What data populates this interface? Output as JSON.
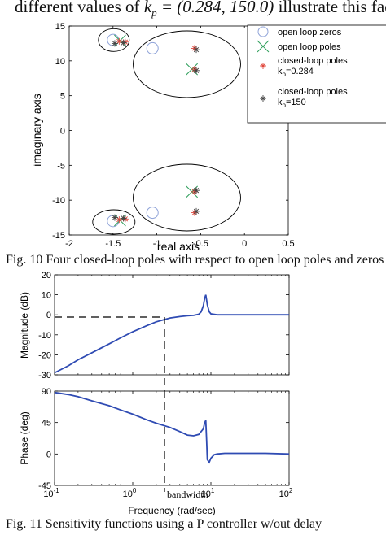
{
  "intro": {
    "prefix": "different values of ",
    "kp": "k",
    "kp_sub": "p",
    "value": " = (0.284, 150.0)",
    "suffix": " illustrate this fact."
  },
  "fig10": {
    "caption": "Fig. 10 Four closed-loop poles with respect to open loop poles and zeros",
    "xlabel": "real axis",
    "ylabel": "imaginary axis",
    "xticks": [
      -2,
      -1.5,
      -1,
      -0.5,
      0,
      0.5
    ],
    "xtick_labels": [
      "-2",
      "-1.5",
      "-1",
      "-0.5",
      "0",
      "0.5"
    ],
    "yticks": [
      -15,
      -10,
      -5,
      0,
      5,
      10,
      15
    ],
    "ytick_labels": [
      "-15",
      "-10",
      "-5",
      "0",
      "5",
      "10",
      "15"
    ],
    "legend": {
      "zeros": "open loop zeros",
      "poles": "open loop poles",
      "cl1_line1": "closed-loop poles",
      "cl1_line2": "k",
      "cl1_sub": "p",
      "cl1_line2b": "=0.284",
      "cl2_line1": "closed-loop poles",
      "cl2_line2": "k",
      "cl2_sub": "p",
      "cl2_line2b": "=150"
    }
  },
  "fig11": {
    "caption": "Fig. 11 Sensitivity functions using a P controller w/out delay",
    "xlabel": "Frequency  (rad/sec)",
    "mag_ylabel": "Magnitude (dB)",
    "phase_ylabel": "Phase (deg)",
    "bandwidth_label": "bandwidth",
    "mag_yticks": [
      20,
      10,
      0,
      -10,
      -20,
      -30
    ],
    "mag_ytick_labels": [
      "20",
      "10",
      "0",
      "-10",
      "-20",
      "-30"
    ],
    "phase_yticks": [
      90,
      45,
      0,
      -45
    ],
    "phase_ytick_labels": [
      "90",
      "45",
      "0",
      "-45"
    ],
    "xtick_base": "10",
    "xtick_exps": [
      "-1",
      "0",
      "1",
      "2"
    ]
  },
  "chart_data": [
    {
      "type": "scatter",
      "title": "",
      "xlabel": "real axis",
      "ylabel": "imaginary axis",
      "xlim": [
        -2,
        0.5
      ],
      "ylim": [
        -15,
        15
      ],
      "series": [
        {
          "name": "open loop zeros",
          "marker": "circle",
          "color": "#8fa3d8",
          "x": [
            -1.5,
            -1.05,
            -1.5,
            -1.05
          ],
          "y": [
            13,
            11.8,
            -13,
            -11.8
          ]
        },
        {
          "name": "open loop poles",
          "marker": "x",
          "color": "#2e9e5b",
          "x": [
            -1.42,
            -0.6,
            -1.42,
            -0.6
          ],
          "y": [
            12.9,
            8.8,
            -12.9,
            -8.8
          ]
        },
        {
          "name": "closed-loop poles kp=0.284",
          "marker": "star",
          "color": "#e0453a",
          "x": [
            -1.43,
            -1.36,
            -0.57,
            -0.57,
            -1.43,
            -1.36,
            -0.57,
            -0.57
          ],
          "y": [
            12.8,
            12.7,
            8.8,
            11.8,
            -12.8,
            -12.7,
            -8.8,
            -11.8
          ]
        },
        {
          "name": "closed-loop poles kp=150",
          "marker": "star",
          "color": "#444444",
          "x": [
            -1.48,
            -1.38,
            -0.55,
            -0.55,
            -1.48,
            -1.38,
            -0.55,
            -0.55
          ],
          "y": [
            12.5,
            12.6,
            8.6,
            11.6,
            -12.5,
            -12.6,
            -8.6,
            -11.6
          ]
        }
      ]
    },
    {
      "type": "line",
      "title": "",
      "xlabel": "Frequency  (rad/sec)",
      "ylabel": "Magnitude (dB)",
      "xscale": "log",
      "xlim": [
        0.1,
        100
      ],
      "ylim": [
        -30,
        20
      ],
      "series": [
        {
          "name": "",
          "color": "#2f4bb3",
          "x": [
            0.1,
            0.15,
            0.2,
            0.3,
            0.5,
            0.7,
            1,
            1.5,
            2,
            2.5,
            3,
            4,
            5,
            6,
            7,
            7.5,
            8,
            8.3,
            8.6,
            9,
            9.5,
            10,
            12,
            15,
            20,
            30,
            50,
            100
          ],
          "y": [
            -29,
            -25.5,
            -22.5,
            -19,
            -14.5,
            -11.5,
            -8.5,
            -5.5,
            -3.5,
            -2.5,
            -1.6,
            -0.9,
            -0.5,
            -0.3,
            0.3,
            1.5,
            4.5,
            8,
            10,
            5,
            1.5,
            0.5,
            0,
            0,
            0,
            0,
            0,
            0
          ]
        }
      ]
    },
    {
      "type": "line",
      "title": "",
      "xlabel": "Frequency  (rad/sec)",
      "ylabel": "Phase (deg)",
      "xscale": "log",
      "xlim": [
        0.1,
        100
      ],
      "ylim": [
        -45,
        90
      ],
      "series": [
        {
          "name": "",
          "color": "#2f4bb3",
          "x": [
            0.1,
            0.15,
            0.2,
            0.3,
            0.5,
            0.7,
            1,
            1.5,
            2,
            3,
            4,
            5,
            6,
            7,
            8,
            8.3,
            8.6,
            8.8,
            9,
            9.5,
            10,
            11,
            12,
            15,
            20,
            30,
            50,
            100
          ],
          "y": [
            88,
            85,
            82,
            76,
            69,
            63,
            57,
            49,
            44,
            38,
            32,
            27,
            26,
            28,
            36,
            44,
            48,
            20,
            -8,
            -12,
            -6,
            -1,
            0,
            1,
            1,
            1,
            1,
            0
          ]
        }
      ]
    }
  ]
}
